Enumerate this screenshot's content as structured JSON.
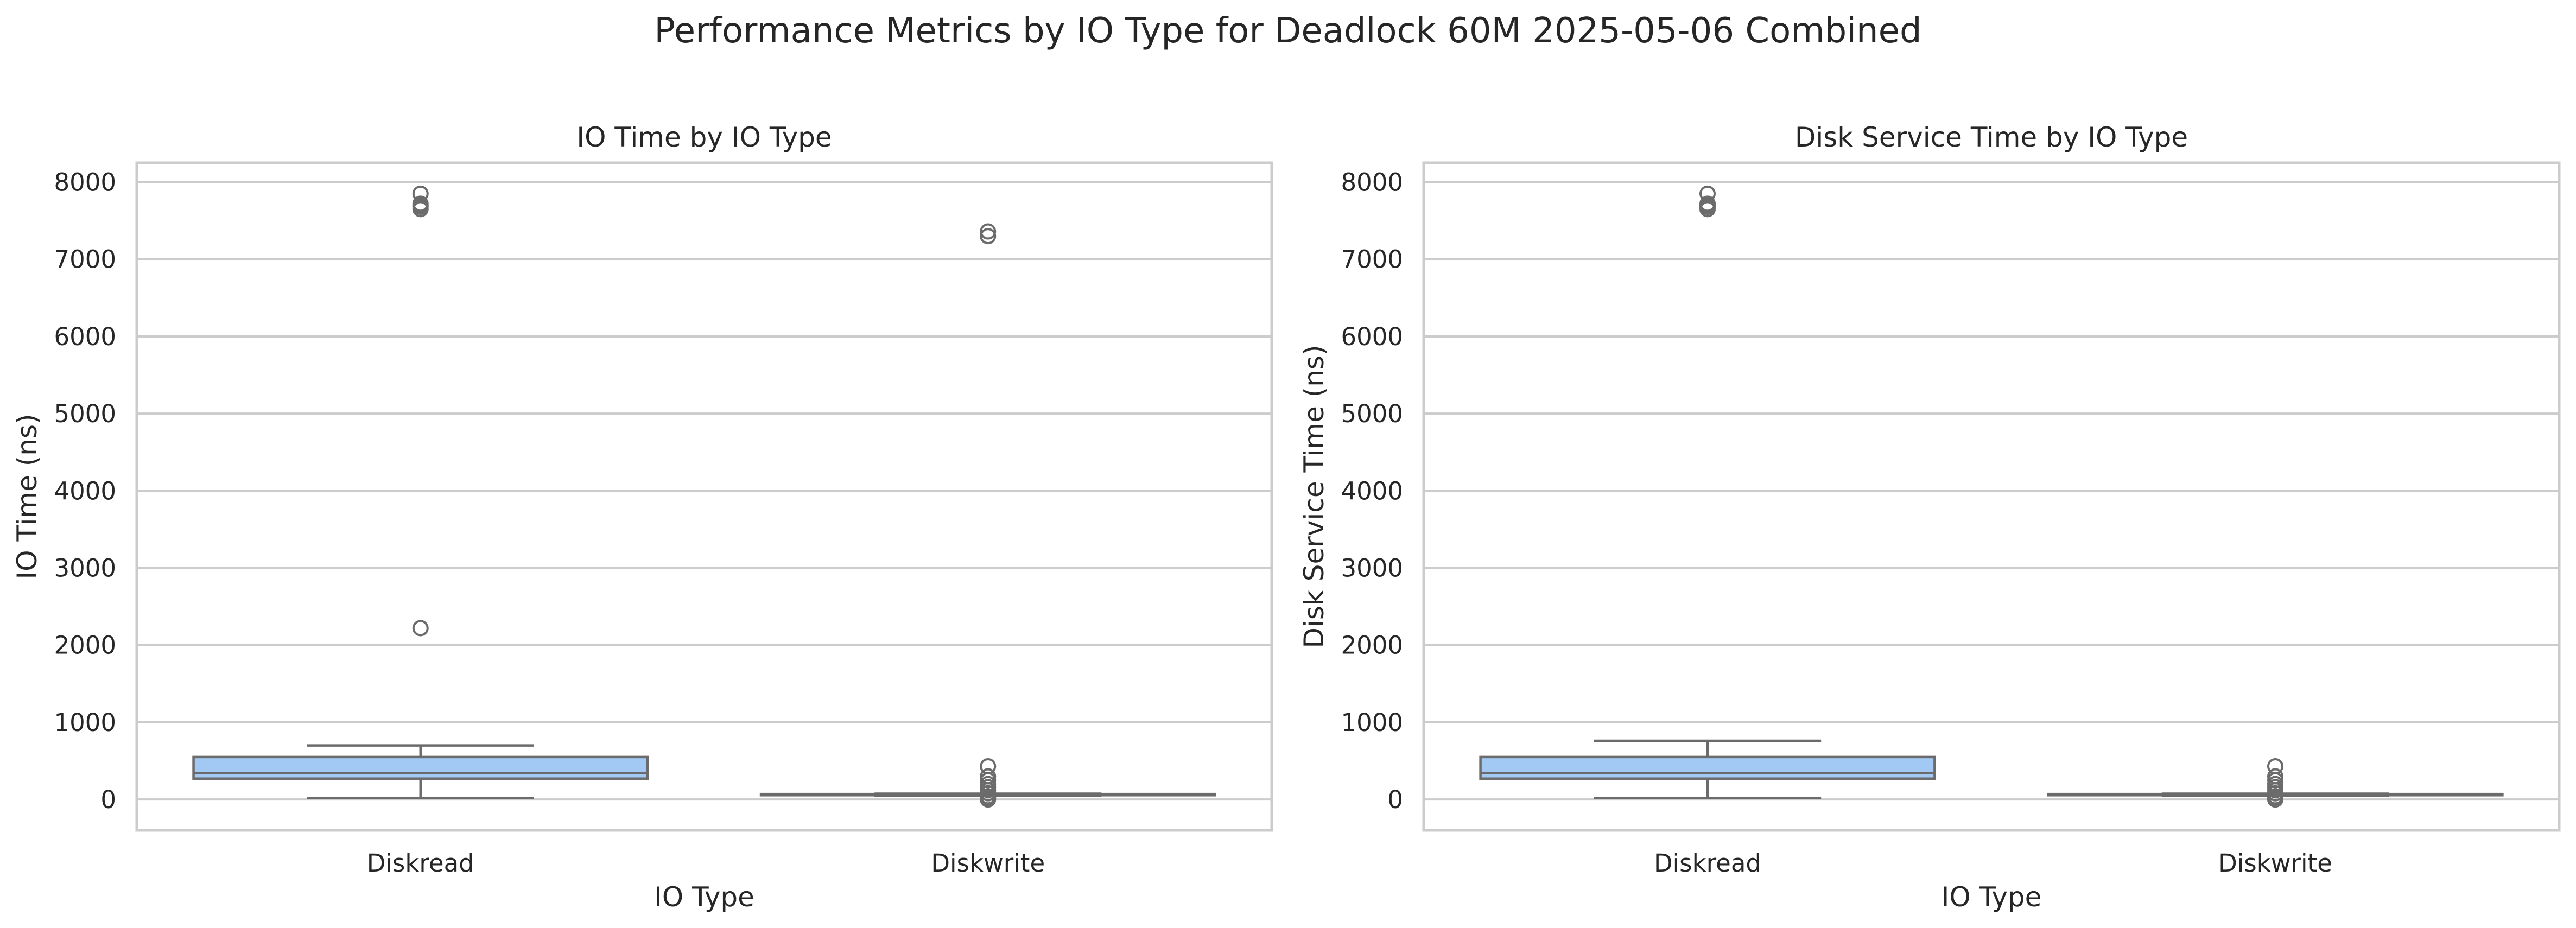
{
  "suptitle": "Performance Metrics by IO Type for Deadlock 60M 2025-05-06 Combined",
  "colors": {
    "box_fill": "#a1c9f4",
    "line": "#6b6b6b",
    "grid": "#cccccc",
    "spine": "#cccccc"
  },
  "chart_data": [
    {
      "type": "box",
      "title": "IO Time by IO Type",
      "xlabel": "IO Type",
      "ylabel": "IO Time (ns)",
      "ylim": [
        -400,
        8250
      ],
      "yticks": [
        0,
        1000,
        2000,
        3000,
        4000,
        5000,
        6000,
        7000,
        8000
      ],
      "grid": true,
      "categories": [
        "Diskread",
        "Diskwrite"
      ],
      "boxes": [
        {
          "category": "Diskread",
          "whisker_low": 20,
          "q1": 270,
          "median": 340,
          "q3": 550,
          "whisker_high": 700,
          "outliers": [
            2220,
            7650,
            7680,
            7700,
            7720,
            7850
          ]
        },
        {
          "category": "Diskwrite",
          "whisker_low": 50,
          "q1": 55,
          "median": 60,
          "q3": 70,
          "whisker_high": 75,
          "outliers": [
            0,
            20,
            40,
            80,
            120,
            160,
            200,
            250,
            300,
            430,
            7300,
            7360
          ]
        }
      ]
    },
    {
      "type": "box",
      "title": "Disk Service Time by IO Type",
      "xlabel": "IO Type",
      "ylabel": "Disk Service Time (ns)",
      "ylim": [
        -400,
        8250
      ],
      "yticks": [
        0,
        1000,
        2000,
        3000,
        4000,
        5000,
        6000,
        7000,
        8000
      ],
      "grid": true,
      "categories": [
        "Diskread",
        "Diskwrite"
      ],
      "boxes": [
        {
          "category": "Diskread",
          "whisker_low": 20,
          "q1": 270,
          "median": 340,
          "q3": 550,
          "whisker_high": 760,
          "outliers": [
            7650,
            7680,
            7700,
            7720,
            7850
          ]
        },
        {
          "category": "Diskwrite",
          "whisker_low": 50,
          "q1": 55,
          "median": 60,
          "q3": 70,
          "whisker_high": 75,
          "outliers": [
            0,
            20,
            40,
            80,
            120,
            160,
            200,
            250,
            300,
            430
          ]
        }
      ]
    }
  ]
}
